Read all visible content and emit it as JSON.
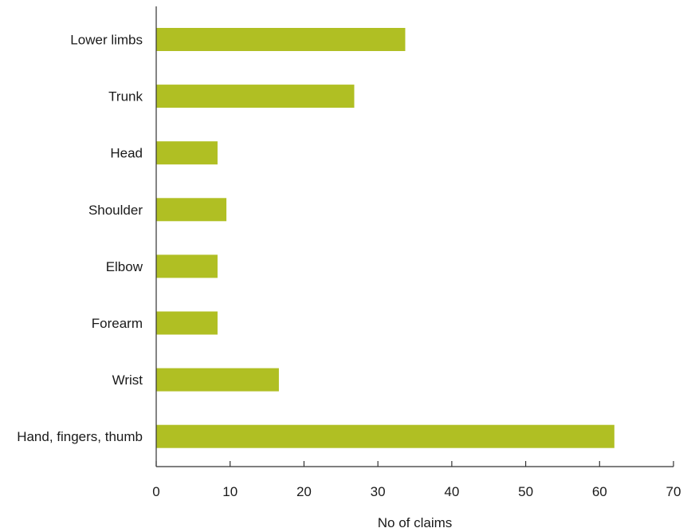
{
  "chart_data": {
    "type": "bar",
    "orientation": "horizontal",
    "categories": [
      "Lower limbs",
      "Trunk",
      "Head",
      "Shoulder",
      "Elbow",
      "Forearm",
      "Wrist",
      "Hand, fingers, thumb"
    ],
    "values": [
      33.7,
      26.8,
      8.3,
      9.5,
      8.3,
      8.3,
      16.6,
      62
    ],
    "xlabel": "No of claims",
    "ylabel": "",
    "xlim": [
      0,
      70
    ],
    "xticks": [
      0,
      10,
      20,
      30,
      40,
      50,
      60,
      70
    ],
    "bar_color": "#b0bf23",
    "grid": false
  }
}
